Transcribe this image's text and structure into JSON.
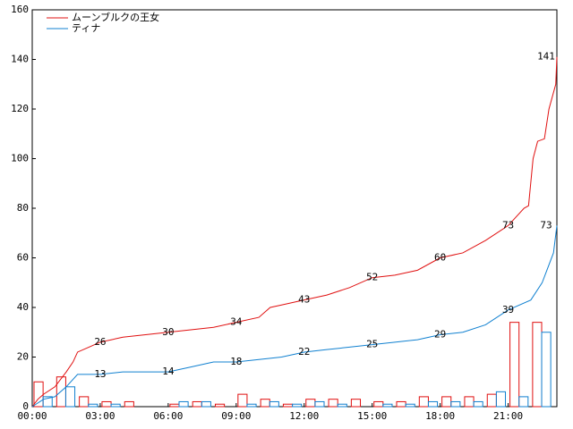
{
  "chart_data": {
    "type": "line",
    "xlim": [
      0,
      23.15
    ],
    "ylim": [
      0,
      160
    ],
    "xticks": [
      {
        "value": 0,
        "label": "00:00"
      },
      {
        "value": 3,
        "label": "03:00"
      },
      {
        "value": 6,
        "label": "06:00"
      },
      {
        "value": 9,
        "label": "09:00"
      },
      {
        "value": 12,
        "label": "12:00"
      },
      {
        "value": 15,
        "label": "15:00"
      },
      {
        "value": 18,
        "label": "18:00"
      },
      {
        "value": 21,
        "label": "21:00"
      }
    ],
    "yticks": [
      0,
      20,
      40,
      60,
      80,
      100,
      120,
      140,
      160
    ],
    "legend": "top-left",
    "series": [
      {
        "name": "ムーンブルクの王女",
        "color": "#e01010",
        "type": "line",
        "x": [
          0,
          0.25,
          0.5,
          1,
          1.5,
          1.8,
          2,
          2.5,
          3,
          3.5,
          4,
          5,
          6,
          7,
          8,
          9,
          10,
          10.5,
          11,
          12,
          13,
          14,
          15,
          16,
          17,
          18,
          19,
          20,
          21,
          21.7,
          21.9,
          22.1,
          22.3,
          22.6,
          22.8,
          23.1,
          23.15
        ],
        "values": [
          0,
          3,
          5,
          8,
          14,
          18,
          22,
          24,
          26,
          27,
          28,
          29,
          30,
          31,
          32,
          34,
          36,
          40,
          41,
          43,
          45,
          48,
          52,
          53,
          55,
          60,
          62,
          67,
          73,
          80,
          81,
          100,
          107,
          108,
          120,
          130,
          141
        ],
        "label_x": [
          3,
          6,
          9,
          12,
          15,
          18,
          21,
          23.15
        ],
        "label_values": [
          26,
          30,
          34,
          43,
          52,
          60,
          73,
          141
        ]
      },
      {
        "name": "ティナ",
        "color": "#1080d0",
        "type": "line",
        "x": [
          0,
          0.5,
          1,
          1.5,
          2,
          3,
          4,
          5,
          6,
          7,
          8,
          9,
          10,
          11,
          12,
          13,
          14,
          15,
          16,
          17,
          18,
          19,
          20,
          21,
          22,
          22.5,
          23,
          23.15
        ],
        "values": [
          0,
          3,
          4,
          8,
          13,
          13,
          14,
          14,
          14,
          16,
          18,
          18,
          19,
          20,
          22,
          23,
          24,
          25,
          26,
          27,
          29,
          30,
          33,
          39,
          43,
          50,
          62,
          73
        ],
        "label_x": [
          3,
          6,
          9,
          12,
          15,
          18,
          21,
          23.15
        ],
        "label_values": [
          13,
          14,
          18,
          22,
          25,
          29,
          39,
          73
        ]
      }
    ],
    "bars": [
      {
        "color": "#e01010",
        "x": [
          0,
          1,
          2,
          3,
          4,
          5,
          6,
          7,
          8,
          9,
          10,
          11,
          12,
          13,
          14,
          15,
          16,
          17,
          18,
          19,
          20,
          21,
          22
        ],
        "values": [
          10,
          12,
          4,
          2,
          2,
          0,
          1,
          2,
          1,
          5,
          3,
          1,
          3,
          3,
          3,
          2,
          2,
          4,
          4,
          4,
          5,
          34,
          34
        ]
      },
      {
        "color": "#1080d0",
        "x": [
          0,
          1,
          2,
          3,
          4,
          5,
          6,
          7,
          8,
          9,
          10,
          11,
          12,
          13,
          14,
          15,
          16,
          17,
          18,
          19,
          20,
          21,
          22
        ],
        "values": [
          4,
          8,
          1,
          1,
          0,
          0,
          2,
          2,
          0,
          1,
          2,
          1,
          2,
          1,
          0,
          1,
          1,
          2,
          2,
          2,
          6,
          4,
          30
        ]
      }
    ]
  }
}
